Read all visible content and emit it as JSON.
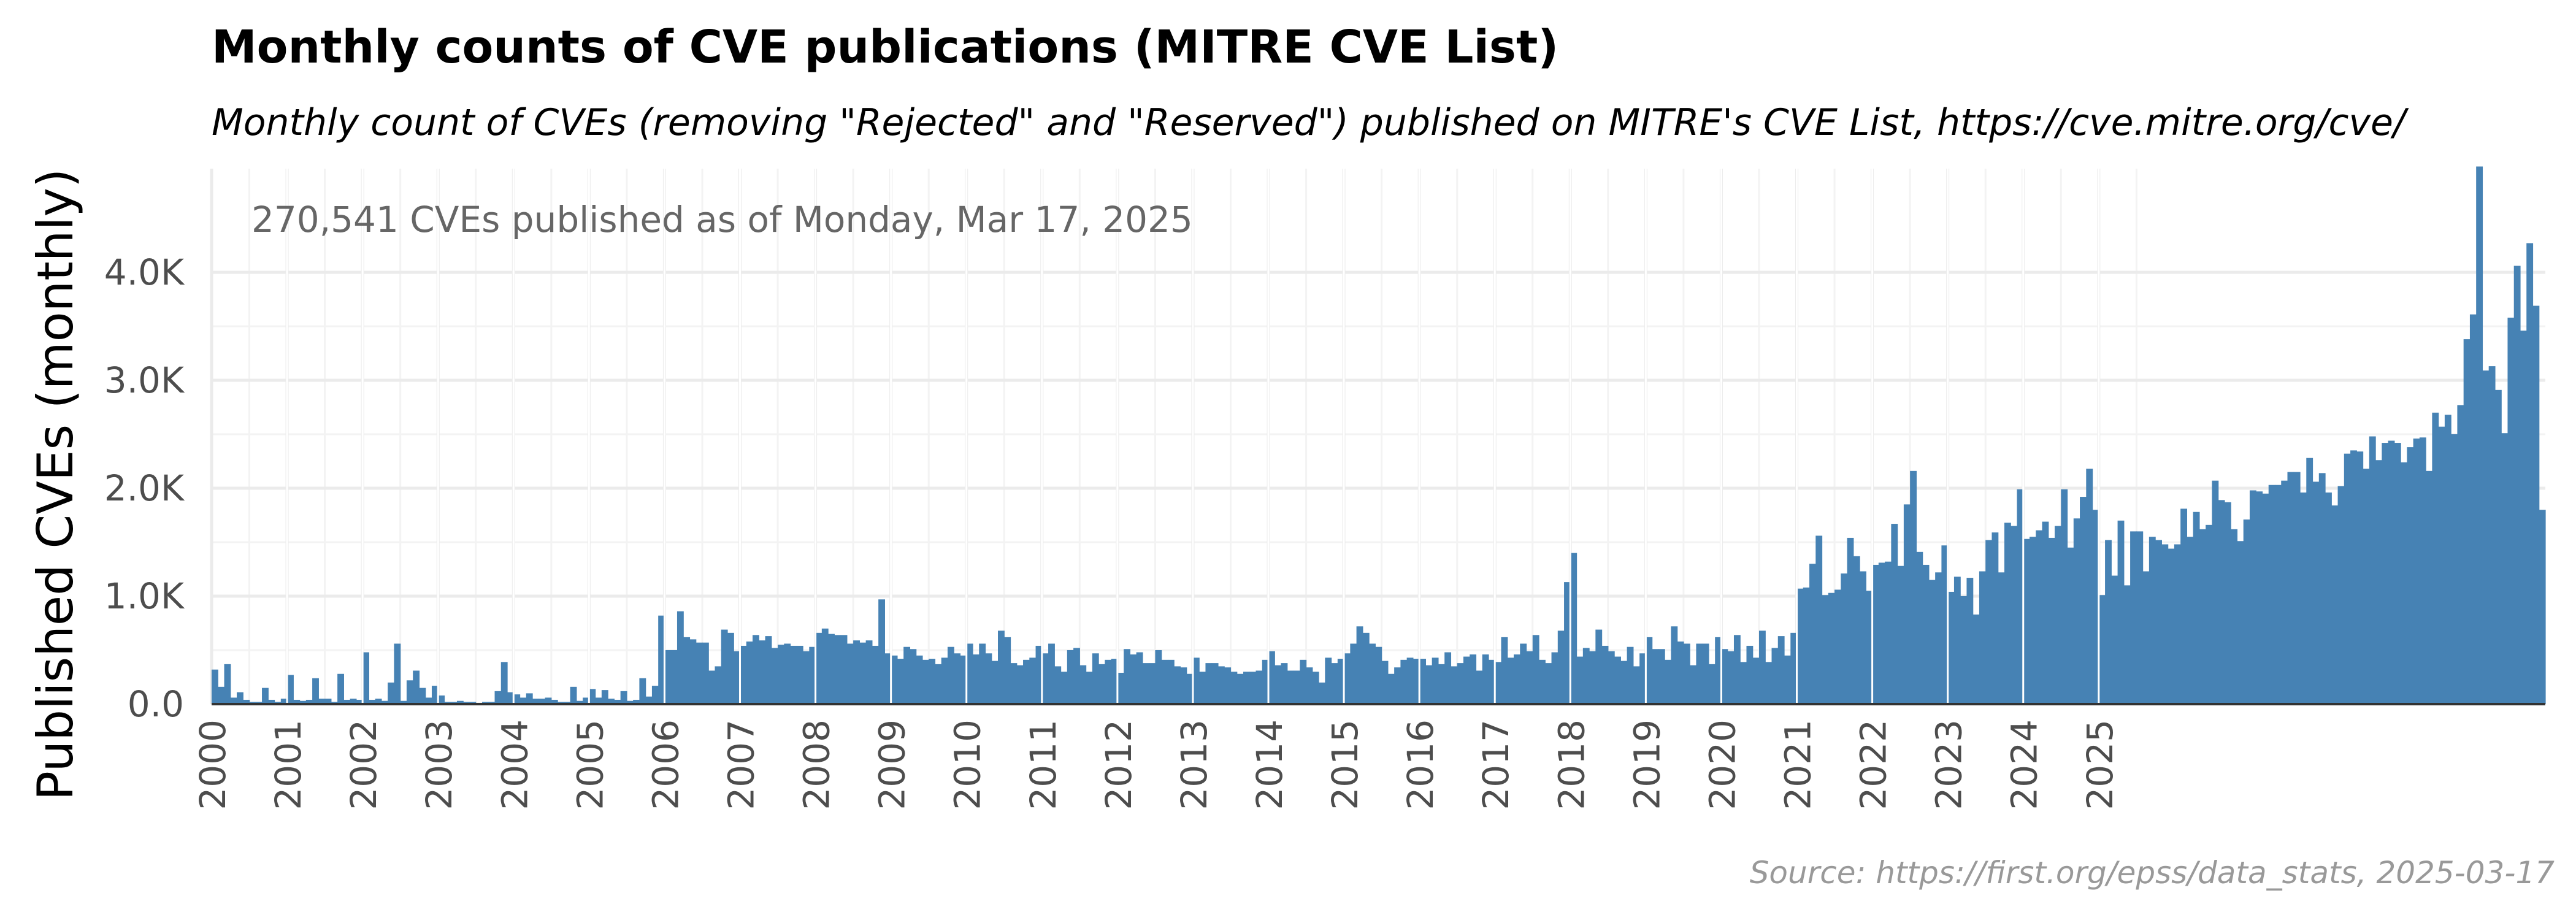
{
  "chart_data": {
    "type": "bar",
    "title": "Monthly counts of CVE publications (MITRE CVE List)",
    "subtitle": "Monthly count of CVEs (removing \"Rejected\" and \"Reserved\")  published on MITRE's CVE List, https://cve.mitre.org/cve/",
    "annotation": "270,541 CVEs published as of Monday, Mar 17, 2025",
    "ylabel": "Published CVEs (monthly)",
    "xlabel": "",
    "caption": "Source: https://first.org/epss/data_stats, 2025-03-17",
    "ylim": [
      0,
      4960
    ],
    "yticks": [
      0,
      1000,
      2000,
      3000,
      4000
    ],
    "ytick_labels": [
      "0.0",
      "1.0K",
      "2.0K",
      "3.0K",
      "4.0K"
    ],
    "xtick_labels": [
      "2000",
      "2001",
      "2002",
      "2003",
      "2004",
      "2005",
      "2006",
      "2007",
      "2008",
      "2009",
      "2010",
      "2011",
      "2012",
      "2013",
      "2014",
      "2015",
      "2016",
      "2017",
      "2018",
      "2019",
      "2020",
      "2021",
      "2022",
      "2023",
      "2024",
      "2025"
    ],
    "grid": true,
    "bar_color": "#4682b4",
    "start_month": "2000-01",
    "values": [
      320,
      160,
      370,
      60,
      110,
      40,
      20,
      20,
      150,
      40,
      20,
      50,
      270,
      40,
      30,
      40,
      240,
      50,
      50,
      20,
      280,
      40,
      50,
      40,
      480,
      40,
      50,
      30,
      200,
      560,
      30,
      220,
      310,
      150,
      60,
      170,
      80,
      20,
      20,
      30,
      20,
      20,
      10,
      20,
      20,
      120,
      390,
      110,
      90,
      60,
      100,
      50,
      50,
      60,
      40,
      20,
      20,
      160,
      30,
      60,
      140,
      60,
      130,
      50,
      40,
      120,
      30,
      40,
      240,
      70,
      170,
      820,
      500,
      500,
      860,
      620,
      600,
      570,
      570,
      310,
      350,
      690,
      660,
      490,
      540,
      580,
      640,
      590,
      630,
      520,
      550,
      560,
      540,
      540,
      490,
      530,
      660,
      700,
      650,
      640,
      640,
      560,
      590,
      570,
      590,
      540,
      970,
      470,
      450,
      420,
      530,
      510,
      450,
      410,
      420,
      370,
      430,
      530,
      470,
      450,
      560,
      460,
      560,
      470,
      400,
      680,
      620,
      380,
      360,
      410,
      430,
      540,
      470,
      560,
      350,
      300,
      500,
      520,
      360,
      300,
      470,
      370,
      410,
      420,
      290,
      510,
      460,
      480,
      380,
      380,
      500,
      410,
      410,
      350,
      340,
      280,
      430,
      300,
      380,
      380,
      350,
      340,
      300,
      280,
      300,
      300,
      310,
      410,
      490,
      360,
      380,
      310,
      310,
      410,
      340,
      300,
      200,
      430,
      380,
      420,
      470,
      560,
      720,
      660,
      560,
      530,
      400,
      280,
      340,
      410,
      430,
      420,
      420,
      360,
      430,
      370,
      480,
      350,
      380,
      440,
      460,
      310,
      460,
      410,
      390,
      620,
      430,
      460,
      560,
      490,
      640,
      410,
      380,
      480,
      680,
      1130,
      1400,
      440,
      520,
      490,
      690,
      540,
      490,
      440,
      400,
      530,
      350,
      470,
      620,
      510,
      510,
      410,
      720,
      580,
      560,
      360,
      560,
      560,
      370,
      620,
      510,
      490,
      640,
      390,
      540,
      430,
      680,
      390,
      520,
      630,
      450,
      660,
      1070,
      1080,
      1300,
      1560,
      1010,
      1030,
      1060,
      1210,
      1540,
      1370,
      1230,
      1050,
      1290,
      1310,
      1320,
      1670,
      1280,
      1850,
      2160,
      1410,
      1290,
      1150,
      1220,
      1470,
      1040,
      1180,
      1000,
      1170,
      830,
      1230,
      1520,
      1590,
      1220,
      1680,
      1650,
      1990,
      1530,
      1550,
      1610,
      1690,
      1540,
      1650,
      1990,
      1450,
      1720,
      1920,
      2180,
      1800,
      1010,
      1520,
      1190,
      1700,
      1100,
      1600,
      1600,
      1230,
      1550,
      1520,
      1480,
      1440,
      1480,
      1810,
      1550,
      1780,
      1620,
      1660,
      2070,
      1890,
      1870,
      1620,
      1510,
      1710,
      1980,
      1970,
      1950,
      2030,
      2030,
      2070,
      2150,
      2150,
      1960,
      2280,
      2060,
      2140,
      1960,
      1840,
      2020,
      2320,
      2350,
      2340,
      2180,
      2480,
      2260,
      2420,
      2440,
      2420,
      2240,
      2380,
      2460,
      2470,
      2160,
      2700,
      2570,
      2680,
      2500,
      2770,
      3380,
      3610,
      4980,
      3090,
      3130,
      2910,
      2510,
      3580,
      4060,
      3460,
      4270,
      3690,
      1800
    ]
  }
}
